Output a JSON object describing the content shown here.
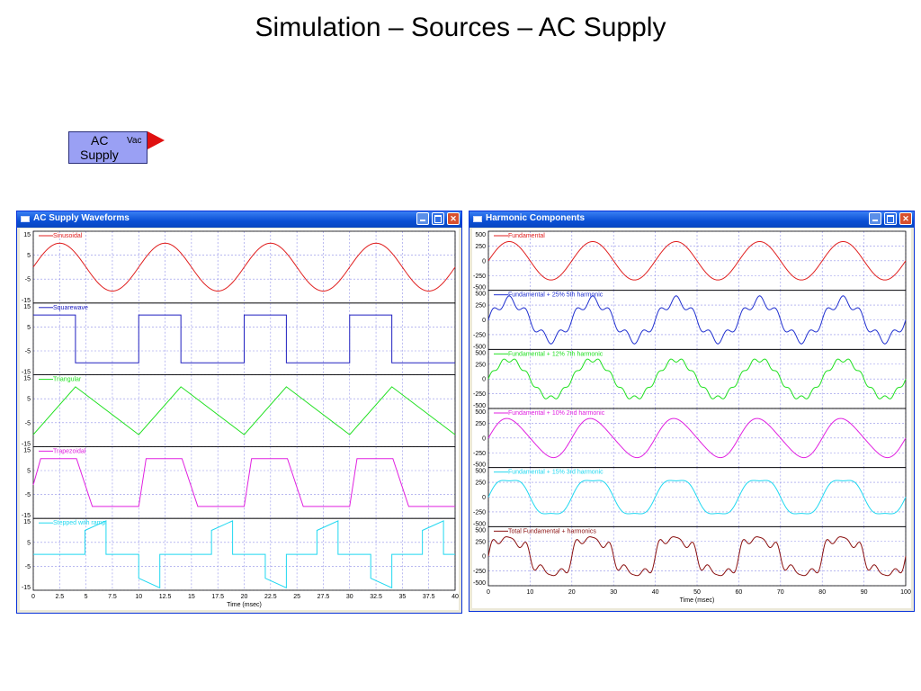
{
  "slide": {
    "title": "Simulation – Sources – AC Supply"
  },
  "ac_block": {
    "line1": "AC",
    "line2": "Supply",
    "port_label": "Vac",
    "color": "#9aa0f4",
    "port_color": "#e01010"
  },
  "windows": [
    {
      "title": "AC Supply Waveforms",
      "xlabel": "Time (msec)",
      "x_ticks": [
        "0",
        "2.5",
        "5",
        "7.5",
        "10",
        "12.5",
        "15",
        "17.5",
        "20",
        "22.5",
        "25",
        "27.5",
        "30",
        "32.5",
        "35",
        "37.5",
        "40"
      ],
      "panels": [
        {
          "name": "Sinusoidal",
          "color": "#e02020",
          "y_ticks": [
            "15",
            "5",
            "-5",
            "-15"
          ]
        },
        {
          "name": "Squarewave",
          "color": "#2020c0",
          "y_ticks": [
            "15",
            "5",
            "-5",
            "-15"
          ]
        },
        {
          "name": "Triangular",
          "color": "#20e020",
          "y_ticks": [
            "15",
            "5",
            "-5",
            "-15"
          ]
        },
        {
          "name": "Trapezoidal",
          "color": "#e020e0",
          "y_ticks": [
            "15",
            "5",
            "-5",
            "-15"
          ]
        },
        {
          "name": "Stepped with ramp",
          "color": "#20d8f0",
          "y_ticks": [
            "15",
            "5",
            "-5",
            "-15"
          ]
        }
      ]
    },
    {
      "title": "Harmonic Components",
      "xlabel": "Time (msec)",
      "x_ticks": [
        "0",
        "10",
        "20",
        "30",
        "40",
        "50",
        "60",
        "70",
        "80",
        "90",
        "100"
      ],
      "panels": [
        {
          "name": "Fundamental",
          "color": "#e02020",
          "y_ticks": [
            "500",
            "250",
            "0",
            "-250",
            "-500"
          ]
        },
        {
          "name": "Fundamental + 25% 5th harmonic",
          "color": "#2030d0",
          "y_ticks": [
            "500",
            "250",
            "0",
            "-250",
            "-500"
          ]
        },
        {
          "name": "Fundamental + 12% 7th harmonic",
          "color": "#20e020",
          "y_ticks": [
            "500",
            "250",
            "0",
            "-250",
            "-500"
          ]
        },
        {
          "name": "Fundamental + 10% 2nd harmonic",
          "color": "#e020e0",
          "y_ticks": [
            "500",
            "250",
            "0",
            "-250",
            "-500"
          ]
        },
        {
          "name": "Fundamental + 15% 3rd harmonic",
          "color": "#20d8f0",
          "y_ticks": [
            "500",
            "250",
            "0",
            "-250",
            "-500"
          ]
        },
        {
          "name": "Total Fundamental + harmonics",
          "color": "#8a1010",
          "y_ticks": [
            "500",
            "250",
            "0",
            "-250",
            "-500"
          ]
        }
      ]
    }
  ],
  "chart_data": [
    {
      "type": "line",
      "title": "AC Supply Waveforms",
      "xlabel": "Time (msec)",
      "xlim": [
        0,
        40
      ],
      "ylim": [
        -15,
        15
      ],
      "series": [
        {
          "name": "Sinusoidal",
          "x": [
            0,
            2.5,
            5,
            7.5,
            10,
            12.5,
            15,
            17.5,
            20,
            22.5,
            25,
            27.5,
            30,
            32.5,
            35,
            37.5,
            40
          ],
          "values": [
            0,
            10,
            0,
            -10,
            0,
            10,
            0,
            -10,
            0,
            10,
            0,
            -10,
            0,
            10,
            0,
            -10,
            0
          ]
        },
        {
          "name": "Squarewave",
          "x": [
            0,
            4,
            4,
            10,
            10,
            14,
            14,
            20,
            20,
            24,
            24,
            30,
            30,
            34,
            34,
            40
          ],
          "values": [
            10,
            10,
            -10,
            -10,
            10,
            10,
            -10,
            -10,
            10,
            10,
            -10,
            -10,
            10,
            10,
            -10,
            -10
          ]
        },
        {
          "name": "Triangular",
          "x": [
            0,
            4,
            10,
            14,
            20,
            24,
            30,
            34,
            40
          ],
          "values": [
            -10,
            10,
            -10,
            10,
            -10,
            10,
            -10,
            10,
            -10
          ]
        },
        {
          "name": "Trapezoidal",
          "x": [
            0,
            0.7,
            4.1,
            5.6,
            10,
            10.7,
            14.1,
            15.6,
            20,
            20.7,
            24.1,
            25.6,
            30,
            30.7,
            34.1,
            35.6,
            40
          ],
          "values": [
            -1,
            10,
            10,
            -10,
            -10,
            10,
            10,
            -10,
            -10,
            10,
            10,
            -10,
            -10,
            10,
            10,
            -10,
            -10
          ]
        },
        {
          "name": "Stepped with ramp",
          "x": [
            0,
            4.9,
            4.9,
            6.9,
            6.9,
            10,
            10,
            12,
            12,
            14,
            14,
            16.9,
            16.9,
            18.9,
            18.9,
            22,
            22,
            24,
            24,
            26.9,
            26.9,
            28.9,
            28.9,
            32,
            32,
            34,
            34,
            36.9,
            36.9,
            38.9,
            38.9,
            40
          ],
          "values": [
            0,
            0,
            10,
            14,
            0,
            0,
            -10,
            -14,
            0,
            0,
            0,
            0,
            10,
            14,
            0,
            0,
            -10,
            -14,
            0,
            0,
            10,
            14,
            0,
            0,
            -10,
            -14,
            0,
            0,
            10,
            14,
            0,
            0
          ]
        }
      ]
    },
    {
      "type": "line",
      "title": "Harmonic Components",
      "xlabel": "Time (msec)",
      "xlim": [
        0,
        100
      ],
      "ylim": [
        -500,
        500
      ],
      "series": [
        {
          "name": "Fundamental",
          "amplitude": 325,
          "frequency_hz": 50,
          "harmonic": null
        },
        {
          "name": "Fundamental + 25% 5th harmonic",
          "amplitude": 325,
          "frequency_hz": 50,
          "harmonic": 5,
          "harmonic_fraction": 0.25
        },
        {
          "name": "Fundamental + 12% 7th harmonic",
          "amplitude": 325,
          "frequency_hz": 50,
          "harmonic": 7,
          "harmonic_fraction": 0.12
        },
        {
          "name": "Fundamental + 10% 2nd harmonic",
          "amplitude": 325,
          "frequency_hz": 50,
          "harmonic": 2,
          "harmonic_fraction": 0.1
        },
        {
          "name": "Fundamental + 15% 3rd harmonic",
          "amplitude": 325,
          "frequency_hz": 50,
          "harmonic": 3,
          "harmonic_fraction": 0.15
        },
        {
          "name": "Total Fundamental + harmonics",
          "amplitude": 325,
          "frequency_hz": 50,
          "harmonics": [
            2,
            3,
            5,
            7
          ],
          "harmonic_fractions": [
            0.1,
            0.15,
            0.25,
            0.12
          ]
        }
      ]
    }
  ]
}
